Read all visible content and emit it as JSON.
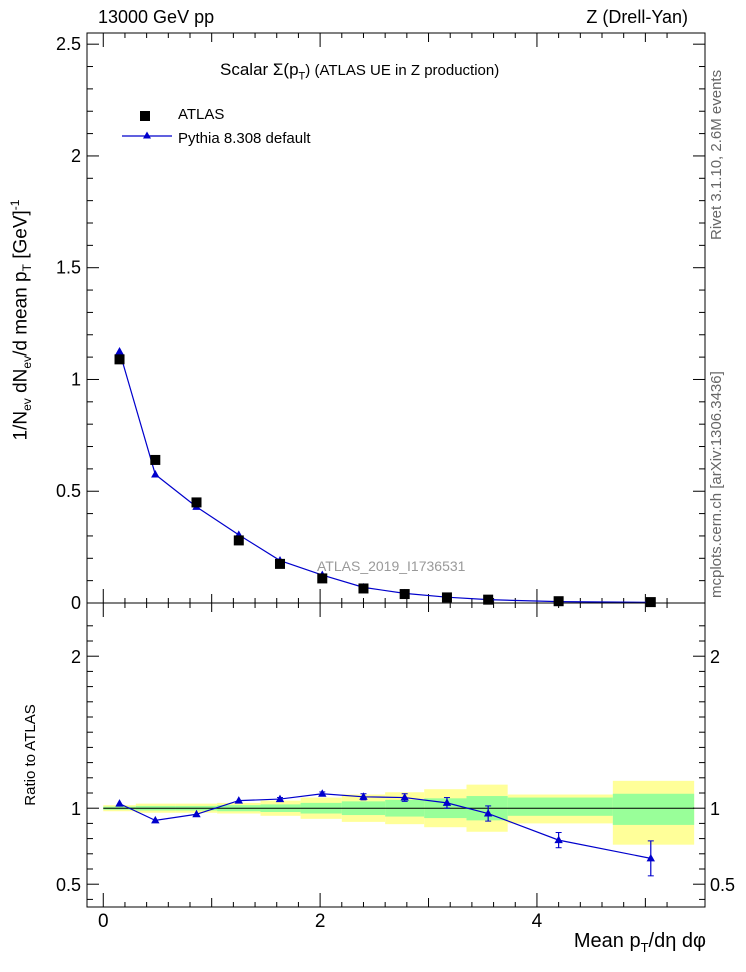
{
  "header": {
    "left": "13000 GeV pp",
    "right": "Z (Drell-Yan)"
  },
  "side_labels": {
    "rivet": "Rivet 3.1.10, 2.6M events",
    "mcplots": "mcplots.cern.ch [arXiv:1306.3436]"
  },
  "watermark": "ATLAS_2019_I1736531",
  "colors": {
    "data": "#000000",
    "mc": "#0000cc",
    "band_inner": "#99ff99",
    "band_outer": "#ffff99"
  },
  "chart_data": [
    {
      "type": "scatter",
      "title": "Scalar Σ(p_T) (ATLAS UE in Z production)",
      "title_parts": {
        "pre": "Scalar ",
        "sym": "Σ(p",
        "sub": "T",
        "post": ") (ATLAS UE in Z production)"
      },
      "xlabel": "Mean p_T/dη dφ",
      "ylabel": "1/N_ev dN_ev/d mean p_T [GeV]^-1",
      "ylabel_parts": {
        "a": "1/N",
        "a_sub": "ev",
        "b": " dN",
        "b_sub": "ev",
        "c": "/d mean p",
        "c_sub": "T",
        "d": " [GeV]",
        "d_sup": "-1"
      },
      "xlim": [
        -0.15,
        5.55
      ],
      "ylim": [
        0,
        2.55
      ],
      "yticks": [
        0,
        0.5,
        1,
        1.5,
        2,
        2.5
      ],
      "ytick_labels": [
        "0",
        "0.5",
        "1",
        "1.5",
        "2",
        "2.5"
      ],
      "legend_position": "top-left",
      "series": [
        {
          "name": "ATLAS",
          "marker": "square",
          "x": [
            0.15,
            0.48,
            0.86,
            1.25,
            1.63,
            2.02,
            2.4,
            2.78,
            3.17,
            3.55,
            4.2,
            5.05
          ],
          "y": [
            1.09,
            0.64,
            0.45,
            0.28,
            0.175,
            0.11,
            0.065,
            0.04,
            0.025,
            0.015,
            0.008,
            0.004
          ]
        },
        {
          "name": "Pythia 8.308 default",
          "marker": "triangle-line",
          "x": [
            0.15,
            0.48,
            0.86,
            1.25,
            1.63,
            2.02,
            2.4,
            2.78,
            3.17,
            3.55,
            4.2,
            5.05
          ],
          "y": [
            1.125,
            0.575,
            0.43,
            0.305,
            0.19,
            0.125,
            0.07,
            0.043,
            0.026,
            0.015,
            0.006,
            0.003
          ]
        }
      ]
    },
    {
      "type": "scatter",
      "ylabel": "Ratio to ATLAS",
      "xlabel": "Mean p_T/dη dφ",
      "xlabel_parts": {
        "a": "Mean p",
        "a_sub": "T",
        "b": "/dη dφ"
      },
      "xlim": [
        -0.15,
        5.55
      ],
      "ylim": [
        0.35,
        2.35
      ],
      "yticks": [
        0.5,
        1,
        2
      ],
      "ytick_labels": [
        "0.5",
        "1",
        "2"
      ],
      "xticks": [
        0,
        2,
        4
      ],
      "xtick_labels": [
        "0",
        "2",
        "4"
      ],
      "bands": {
        "edges": [
          0,
          0.3,
          0.67,
          1.05,
          1.45,
          1.82,
          2.2,
          2.6,
          2.96,
          3.35,
          3.73,
          4.7,
          5.45
        ],
        "inner_lo": [
          0.99,
          0.985,
          0.985,
          0.98,
          0.975,
          0.965,
          0.955,
          0.945,
          0.935,
          0.92,
          0.95,
          0.89
        ],
        "inner_hi": [
          1.01,
          1.015,
          1.015,
          1.02,
          1.025,
          1.035,
          1.045,
          1.055,
          1.065,
          1.08,
          1.07,
          1.095
        ],
        "outer_lo": [
          0.98,
          0.97,
          0.97,
          0.965,
          0.95,
          0.93,
          0.91,
          0.895,
          0.875,
          0.845,
          0.9,
          0.76
        ],
        "outer_hi": [
          1.02,
          1.03,
          1.03,
          1.035,
          1.05,
          1.07,
          1.09,
          1.105,
          1.125,
          1.155,
          1.09,
          1.18
        ]
      },
      "series": [
        {
          "name": "Pythia 8.308 default",
          "x": [
            0.15,
            0.48,
            0.86,
            1.25,
            1.63,
            2.02,
            2.4,
            2.78,
            3.17,
            3.55,
            4.2,
            5.05
          ],
          "y": [
            1.03,
            0.92,
            0.96,
            1.05,
            1.06,
            1.095,
            1.075,
            1.07,
            1.035,
            0.965,
            0.79,
            0.67
          ],
          "err": [
            0.005,
            0.005,
            0.006,
            0.008,
            0.01,
            0.012,
            0.02,
            0.025,
            0.035,
            0.05,
            0.05,
            0.115
          ]
        }
      ]
    }
  ]
}
